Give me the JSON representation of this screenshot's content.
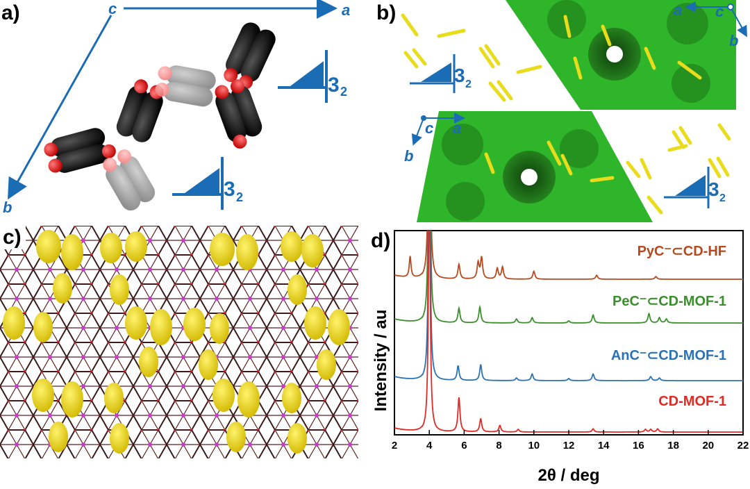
{
  "panel_labels": {
    "a": "a)",
    "b": "b)",
    "c": "c)",
    "d": "d)"
  },
  "panel_a": {
    "axis_labels": {
      "c": "c",
      "a": "a",
      "b": "b"
    },
    "symmetry": [
      "3",
      "2"
    ],
    "colors": {
      "axis": "#1a6cb5",
      "carbon": "#111111",
      "oxygen": "#e0161b",
      "ghost": "#9a9a9a"
    }
  },
  "panel_b": {
    "axis_labels_top": {
      "a": "a",
      "c": "c",
      "b": "b"
    },
    "axis_labels_bottom": {
      "c": "c",
      "a": "a",
      "b": "b"
    },
    "symmetry": [
      "3",
      "2"
    ],
    "colors": {
      "framework": "#2fb52a",
      "framework_dark": "#1d6e18",
      "guest": "#f2ea2a"
    }
  },
  "panel_c": {
    "colors": {
      "framework": "#3a1a1a",
      "guest": "#f4e21d",
      "accent": "#c83cc8"
    }
  },
  "chart_data": {
    "type": "line",
    "xlabel": "2θ / deg",
    "ylabel": "Intensity / au",
    "xlim": [
      2,
      22
    ],
    "xticks": [
      2,
      4,
      6,
      8,
      10,
      12,
      14,
      16,
      18,
      20,
      22
    ],
    "series": [
      {
        "name": "PyC⁻⊂CD-HF",
        "color": "#b8491c",
        "peaks": [
          [
            2.9,
            0.8
          ],
          [
            4.0,
            10
          ],
          [
            5.7,
            0.55
          ],
          [
            6.8,
            0.6
          ],
          [
            7.0,
            0.8
          ],
          [
            7.9,
            0.4
          ],
          [
            8.2,
            0.45
          ],
          [
            10.0,
            0.3
          ],
          [
            13.6,
            0.15
          ],
          [
            17.0,
            0.1
          ]
        ]
      },
      {
        "name": "PeC⁻⊂CD-MOF-1",
        "color": "#3a8f2c",
        "peaks": [
          [
            4.0,
            10
          ],
          [
            5.7,
            0.55
          ],
          [
            6.9,
            0.6
          ],
          [
            9.0,
            0.15
          ],
          [
            9.9,
            0.2
          ],
          [
            12.0,
            0.08
          ],
          [
            13.4,
            0.3
          ],
          [
            16.6,
            0.35
          ],
          [
            17.2,
            0.2
          ],
          [
            17.6,
            0.15
          ]
        ]
      },
      {
        "name": "AnC⁻⊂CD-MOF-1",
        "color": "#2a72b6",
        "peaks": [
          [
            4.0,
            10
          ],
          [
            5.65,
            0.55
          ],
          [
            6.95,
            0.6
          ],
          [
            9.0,
            0.1
          ],
          [
            9.9,
            0.25
          ],
          [
            12.0,
            0.08
          ],
          [
            13.4,
            0.25
          ],
          [
            16.7,
            0.15
          ],
          [
            17.2,
            0.1
          ]
        ]
      },
      {
        "name": "CD-MOF-1",
        "color": "#e02a24",
        "peaks": [
          [
            4.0,
            10
          ],
          [
            5.7,
            1.3
          ],
          [
            6.95,
            0.5
          ],
          [
            8.05,
            0.25
          ],
          [
            9.1,
            0.1
          ],
          [
            13.4,
            0.12
          ],
          [
            16.4,
            0.1
          ],
          [
            16.7,
            0.1
          ],
          [
            17.1,
            0.12
          ]
        ]
      }
    ]
  }
}
